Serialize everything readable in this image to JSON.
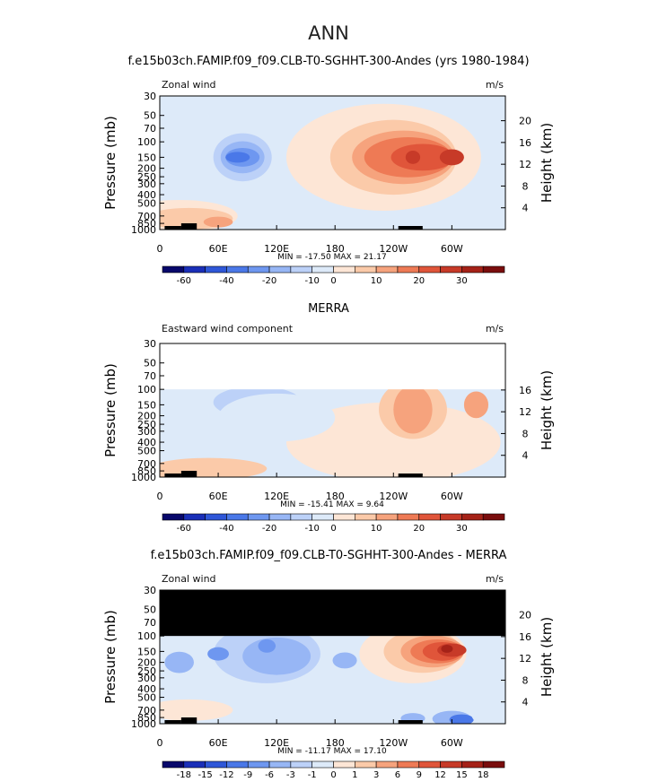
{
  "figure_title": "ANN",
  "chart_data": [
    {
      "type": "heatmap",
      "title": "f.e15b03ch.FAMIP.f09_f09.CLB-T0-SGHHT-300-Andes (yrs 1980-1984)",
      "left_label": "Zonal wind",
      "units": "m/s",
      "ylabel": "Pressure (mb)",
      "ylabel_right": "Height (km)",
      "x_ticks": [
        "0",
        "60E",
        "120E",
        "180",
        "120W",
        "60W"
      ],
      "y_ticks": [
        "30",
        "50",
        "70",
        "100",
        "150",
        "200",
        "250",
        "300",
        "400",
        "500",
        "700",
        "850",
        "1000"
      ],
      "height_ticks": [
        "20",
        "16",
        "12",
        "8",
        "4"
      ],
      "height_top_km": 20,
      "stats": "MIN = -17.50   MAX =  21.17",
      "colorbar_ticks": [
        "-60",
        "-40",
        "-20",
        "-10",
        "0",
        "10",
        "20",
        "30"
      ],
      "colorbar_levels": 16
    },
    {
      "type": "heatmap",
      "title": "MERRA",
      "left_label": "Eastward wind component",
      "units": "m/s",
      "ylabel": "Pressure (mb)",
      "ylabel_right": "Height (km)",
      "x_ticks": [
        "0",
        "60E",
        "120E",
        "180",
        "120W",
        "60W"
      ],
      "y_ticks": [
        "30",
        "50",
        "70",
        "100",
        "150",
        "200",
        "250",
        "300",
        "400",
        "500",
        "700",
        "850",
        "1000"
      ],
      "height_ticks": [
        "16",
        "12",
        "8",
        "4"
      ],
      "height_top_km": 16,
      "data_top_mb": 100,
      "stats": "MIN = -15.41   MAX =   9.64",
      "colorbar_ticks": [
        "-60",
        "-40",
        "-20",
        "-10",
        "0",
        "10",
        "20",
        "30"
      ],
      "colorbar_levels": 16
    },
    {
      "type": "heatmap",
      "title": "f.e15b03ch.FAMIP.f09_f09.CLB-T0-SGHHT-300-Andes - MERRA",
      "left_label": "Zonal wind",
      "units": "m/s",
      "ylabel": "Pressure (mb)",
      "ylabel_right": "Height (km)",
      "x_ticks": [
        "0",
        "60E",
        "120E",
        "180",
        "120W",
        "60W"
      ],
      "y_ticks": [
        "30",
        "50",
        "70",
        "100",
        "150",
        "200",
        "250",
        "300",
        "400",
        "500",
        "700",
        "850",
        "1000"
      ],
      "height_ticks": [
        "20",
        "16",
        "12",
        "8",
        "4"
      ],
      "height_top_km": 20,
      "masked_above_mb": 100,
      "stats": "MIN = -11.17   MAX =  17.10",
      "colorbar_ticks": [
        "-18",
        "-15",
        "-12",
        "-9",
        "-6",
        "-3",
        "-1",
        "0",
        "1",
        "3",
        "6",
        "9",
        "12",
        "15",
        "18"
      ],
      "colorbar_levels": 16
    }
  ],
  "colors": {
    "palette": [
      "#08086b",
      "#1a2fb8",
      "#2f57d8",
      "#4a78e8",
      "#6e97f0",
      "#97b6f5",
      "#bcd1f8",
      "#ddeaf9",
      "#fde6d6",
      "#fbcaa9",
      "#f6a37d",
      "#ee7a55",
      "#e0553a",
      "#c73a28",
      "#a52218",
      "#7a0d0d"
    ]
  }
}
